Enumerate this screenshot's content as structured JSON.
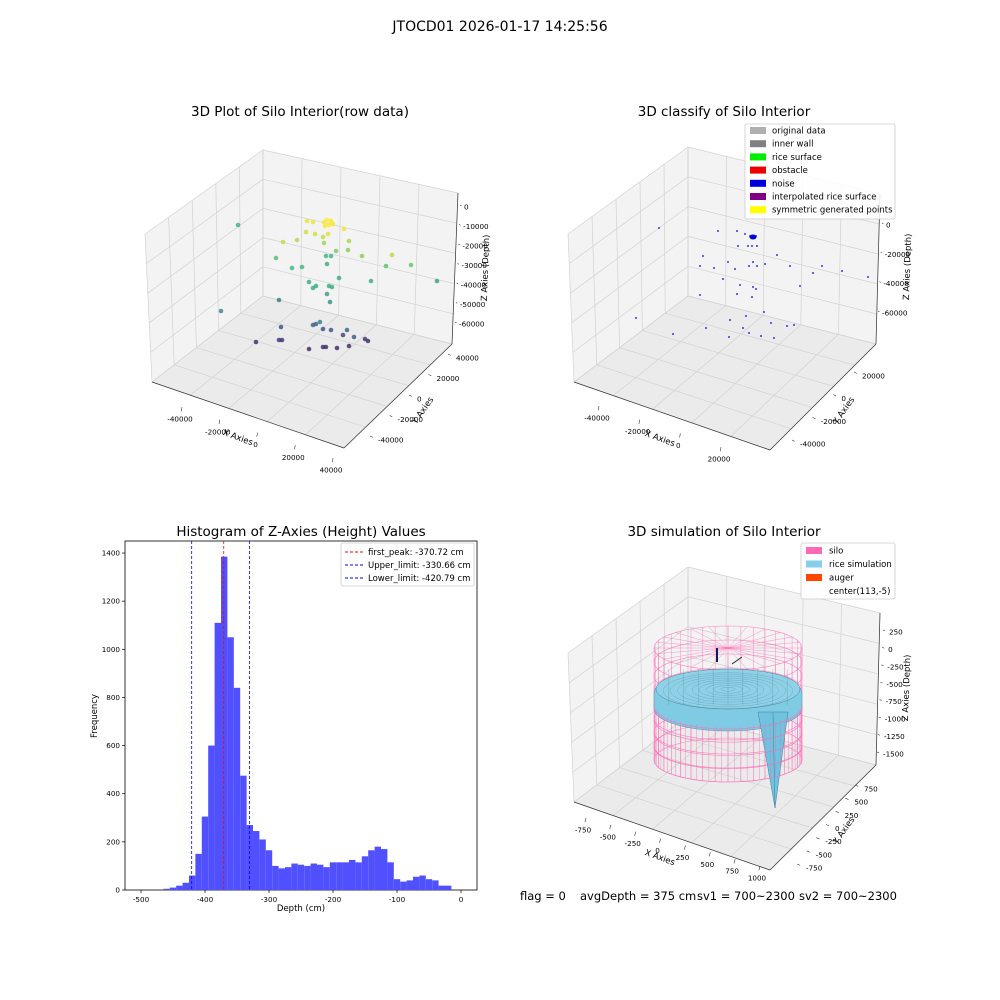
{
  "suptitle": "JTOCD01 2026-01-17 14:25:56",
  "footer": {
    "flag": "flag = 0",
    "avg_depth": "avgDepth = 375 cm",
    "sv1": "sv1 = 700~2300",
    "sv2": "sv2 = 700~2300"
  },
  "colors": {
    "pane_face": "#ebebeb",
    "wall_face": "#f3f3f3",
    "hist_bar": "#5050ff",
    "silo_mesh": "#ff69b4",
    "rice_surface": "#7fcbe3"
  },
  "chart_data": [
    {
      "type": "scatter",
      "dims": 3,
      "title": "3D Plot of Silo Interior(row data)",
      "xlabel": "X Axies",
      "ylabel": "Y Axies",
      "zlabel": "Z Axies (Depth)",
      "xticks": [
        "-40000",
        "-20000",
        "0",
        "20000",
        "40000"
      ],
      "yticks": [
        "40000",
        "20000",
        "0",
        "-20000",
        "-40000"
      ],
      "zticks": [
        "0",
        "-10000",
        "-20000",
        "-30000",
        "-40000",
        "-50000",
        "-60000"
      ],
      "colormap": [
        "#440154",
        "#31688e",
        "#35b779",
        "#fde725"
      ],
      "points": [
        {
          "x": 238,
          "y": 225,
          "z": 0.65
        },
        {
          "x": 307,
          "y": 221,
          "z": 0.97
        },
        {
          "x": 313,
          "y": 222,
          "z": 0.97
        },
        {
          "x": 324,
          "y": 222,
          "z": 0.99
        },
        {
          "x": 327,
          "y": 220,
          "z": 1.0
        },
        {
          "x": 331,
          "y": 221,
          "z": 1.0
        },
        {
          "x": 325,
          "y": 226,
          "z": 1.0
        },
        {
          "x": 329,
          "y": 225,
          "z": 1.0
        },
        {
          "x": 333,
          "y": 224,
          "z": 1.0
        },
        {
          "x": 344,
          "y": 229,
          "z": 0.98
        },
        {
          "x": 306,
          "y": 232,
          "z": 0.92
        },
        {
          "x": 315,
          "y": 234,
          "z": 0.93
        },
        {
          "x": 323,
          "y": 237,
          "z": 0.9
        },
        {
          "x": 328,
          "y": 234,
          "z": 0.95
        },
        {
          "x": 297,
          "y": 240,
          "z": 0.88
        },
        {
          "x": 283,
          "y": 242,
          "z": 0.9
        },
        {
          "x": 324,
          "y": 243,
          "z": 0.85
        },
        {
          "x": 349,
          "y": 241,
          "z": 0.86
        },
        {
          "x": 336,
          "y": 251,
          "z": 0.78
        },
        {
          "x": 348,
          "y": 250,
          "z": 0.8
        },
        {
          "x": 326,
          "y": 256,
          "z": 0.66
        },
        {
          "x": 331,
          "y": 256,
          "z": 0.66
        },
        {
          "x": 362,
          "y": 256,
          "z": 0.8
        },
        {
          "x": 392,
          "y": 255,
          "z": 0.88
        },
        {
          "x": 276,
          "y": 258,
          "z": 0.7
        },
        {
          "x": 327,
          "y": 264,
          "z": 0.62
        },
        {
          "x": 292,
          "y": 268,
          "z": 0.66
        },
        {
          "x": 302,
          "y": 267,
          "z": 0.68
        },
        {
          "x": 386,
          "y": 266,
          "z": 0.72
        },
        {
          "x": 411,
          "y": 265,
          "z": 0.74
        },
        {
          "x": 339,
          "y": 278,
          "z": 0.6
        },
        {
          "x": 371,
          "y": 281,
          "z": 0.6
        },
        {
          "x": 437,
          "y": 281,
          "z": 0.55
        },
        {
          "x": 309,
          "y": 282,
          "z": 0.6
        },
        {
          "x": 316,
          "y": 286,
          "z": 0.6
        },
        {
          "x": 313,
          "y": 288,
          "z": 0.6
        },
        {
          "x": 329,
          "y": 286,
          "z": 0.62
        },
        {
          "x": 332,
          "y": 287,
          "z": 0.62
        },
        {
          "x": 327,
          "y": 294,
          "z": 0.55
        },
        {
          "x": 330,
          "y": 302,
          "z": 0.48
        },
        {
          "x": 279,
          "y": 300,
          "z": 0.4
        },
        {
          "x": 221,
          "y": 311,
          "z": 0.45
        },
        {
          "x": 320,
          "y": 322,
          "z": 0.42
        },
        {
          "x": 313,
          "y": 325,
          "z": 0.3
        },
        {
          "x": 316,
          "y": 324,
          "z": 0.3
        },
        {
          "x": 281,
          "y": 327,
          "z": 0.25
        },
        {
          "x": 323,
          "y": 329,
          "z": 0.24
        },
        {
          "x": 331,
          "y": 330,
          "z": 0.25
        },
        {
          "x": 347,
          "y": 330,
          "z": 0.3
        },
        {
          "x": 343,
          "y": 335,
          "z": 0.2
        },
        {
          "x": 354,
          "y": 337,
          "z": 0.28
        },
        {
          "x": 282,
          "y": 340,
          "z": 0.15
        },
        {
          "x": 279,
          "y": 340,
          "z": 0.16
        },
        {
          "x": 365,
          "y": 339,
          "z": 0.15
        },
        {
          "x": 368,
          "y": 341,
          "z": 0.12
        },
        {
          "x": 256,
          "y": 342,
          "z": 0.12
        },
        {
          "x": 309,
          "y": 349,
          "z": 0.1
        },
        {
          "x": 323,
          "y": 347,
          "z": 0.12
        },
        {
          "x": 326,
          "y": 347,
          "z": 0.12
        },
        {
          "x": 337,
          "y": 348,
          "z": 0.1
        },
        {
          "x": 349,
          "y": 346,
          "z": 0.12
        }
      ]
    },
    {
      "type": "scatter",
      "dims": 3,
      "title": "3D classify of Silo Interior",
      "xlabel": "X Axies",
      "ylabel": "Y Axies",
      "zlabel": "Z Axies (Depth)",
      "xticks": [
        "-40000",
        "-20000",
        "0",
        "20000"
      ],
      "yticks": [
        "20000",
        "0",
        "-20000",
        "-40000"
      ],
      "zticks": [
        "0",
        "-20000",
        "-40000",
        "-60000"
      ],
      "legend": [
        {
          "label": "original data",
          "color": "#b0b0b0"
        },
        {
          "label": "inner wall",
          "color": "#808080"
        },
        {
          "label": "rice surface",
          "color": "#00ee00"
        },
        {
          "label": "obstacle",
          "color": "#ee0000"
        },
        {
          "label": "noise",
          "color": "#0000dd"
        },
        {
          "label": "interpolated rice surface",
          "color": "#800080"
        },
        {
          "label": "symmetric generated points",
          "color": "#ffff00"
        }
      ],
      "noise_points": [
        [
          659,
          228
        ],
        [
          718,
          231
        ],
        [
          737,
          231
        ],
        [
          745,
          234
        ],
        [
          750,
          236
        ],
        [
          752,
          236
        ],
        [
          754,
          236
        ],
        [
          756,
          236
        ],
        [
          738,
          246
        ],
        [
          748,
          246
        ],
        [
          752,
          246
        ],
        [
          757,
          246
        ],
        [
          703,
          256
        ],
        [
          777,
          255
        ],
        [
          728,
          262
        ],
        [
          753,
          262
        ],
        [
          765,
          264
        ],
        [
          700,
          266
        ],
        [
          714,
          268
        ],
        [
          735,
          269
        ],
        [
          749,
          266
        ],
        [
          757,
          266
        ],
        [
          790,
          266
        ],
        [
          822,
          266
        ],
        [
          813,
          273
        ],
        [
          723,
          279
        ],
        [
          740,
          285
        ],
        [
          753,
          287
        ],
        [
          756,
          289
        ],
        [
          800,
          286
        ],
        [
          700,
          295
        ],
        [
          737,
          294
        ],
        [
          752,
          297
        ],
        [
          764,
          312
        ],
        [
          746,
          316
        ],
        [
          730,
          320
        ],
        [
          771,
          323
        ],
        [
          636,
          318
        ],
        [
          706,
          328
        ],
        [
          743,
          328
        ],
        [
          749,
          333
        ],
        [
          761,
          336
        ],
        [
          774,
          338
        ],
        [
          787,
          326
        ],
        [
          794,
          325
        ],
        [
          673,
          334
        ],
        [
          729,
          337
        ],
        [
          842,
          271
        ],
        [
          868,
          277
        ]
      ]
    },
    {
      "type": "bar",
      "title": "Histogram of Z-Axies (Height) Values",
      "xlabel": "Depth (cm)",
      "ylabel": "Frequency",
      "xlim": [
        -525,
        25
      ],
      "ylim": [
        0,
        1450
      ],
      "xticks": [
        -500,
        -400,
        -300,
        -200,
        -100,
        0
      ],
      "yticks": [
        0,
        200,
        400,
        600,
        800,
        1000,
        1200,
        1400
      ],
      "bin_width": 10,
      "bins": [
        {
          "x": -460,
          "v": 5
        },
        {
          "x": -450,
          "v": 10
        },
        {
          "x": -440,
          "v": 18
        },
        {
          "x": -430,
          "v": 30
        },
        {
          "x": -420,
          "v": 60
        },
        {
          "x": -410,
          "v": 150
        },
        {
          "x": -400,
          "v": 305
        },
        {
          "x": -390,
          "v": 600
        },
        {
          "x": -380,
          "v": 1110
        },
        {
          "x": -370,
          "v": 1385
        },
        {
          "x": -360,
          "v": 1050
        },
        {
          "x": -350,
          "v": 840
        },
        {
          "x": -340,
          "v": 475
        },
        {
          "x": -330,
          "v": 270
        },
        {
          "x": -320,
          "v": 245
        },
        {
          "x": -310,
          "v": 210
        },
        {
          "x": -300,
          "v": 165
        },
        {
          "x": -290,
          "v": 100
        },
        {
          "x": -280,
          "v": 90
        },
        {
          "x": -270,
          "v": 95
        },
        {
          "x": -260,
          "v": 110
        },
        {
          "x": -250,
          "v": 105
        },
        {
          "x": -240,
          "v": 100
        },
        {
          "x": -230,
          "v": 110
        },
        {
          "x": -220,
          "v": 105
        },
        {
          "x": -210,
          "v": 95
        },
        {
          "x": -200,
          "v": 115
        },
        {
          "x": -190,
          "v": 115
        },
        {
          "x": -180,
          "v": 115
        },
        {
          "x": -170,
          "v": 125
        },
        {
          "x": -160,
          "v": 115
        },
        {
          "x": -150,
          "v": 140
        },
        {
          "x": -140,
          "v": 165
        },
        {
          "x": -130,
          "v": 180
        },
        {
          "x": -120,
          "v": 170
        },
        {
          "x": -110,
          "v": 115
        },
        {
          "x": -100,
          "v": 45
        },
        {
          "x": -90,
          "v": 35
        },
        {
          "x": -80,
          "v": 40
        },
        {
          "x": -70,
          "v": 55
        },
        {
          "x": -60,
          "v": 60
        },
        {
          "x": -50,
          "v": 45
        },
        {
          "x": -40,
          "v": 40
        },
        {
          "x": -30,
          "v": 18
        },
        {
          "x": -20,
          "v": 18
        }
      ],
      "vlines": [
        {
          "label": "first_peak: -370.72 cm",
          "x": -370.72,
          "color": "#ff0000"
        },
        {
          "label": "Upper_limit: -330.66 cm",
          "x": -330.66,
          "color": "#0000ff"
        },
        {
          "label": "Lower_limit: -420.79 cm",
          "x": -420.79,
          "color": "#0000ff"
        }
      ]
    },
    {
      "type": "surface",
      "dims": 3,
      "title": "3D simulation of Silo Interior",
      "xlabel": "X Axies",
      "ylabel": "Y Axies",
      "zlabel": "Z Axies (Depth)",
      "xticks": [
        "-750",
        "-500",
        "-250",
        "0",
        "250",
        "500",
        "750",
        "1000"
      ],
      "yticks": [
        "750",
        "500",
        "250",
        "0",
        "-250",
        "-500",
        "-750"
      ],
      "zticks": [
        "250",
        "0",
        "-250",
        "-500",
        "-750",
        "-1000",
        "-1250",
        "-1500"
      ],
      "legend": [
        {
          "label": "silo",
          "color": "#ff69b4"
        },
        {
          "label": "rice simulation",
          "color": "#87ceeb"
        },
        {
          "label": "auger",
          "color": "#ff4500"
        },
        {
          "label": "center(113,-5)",
          "color": ""
        }
      ]
    }
  ]
}
